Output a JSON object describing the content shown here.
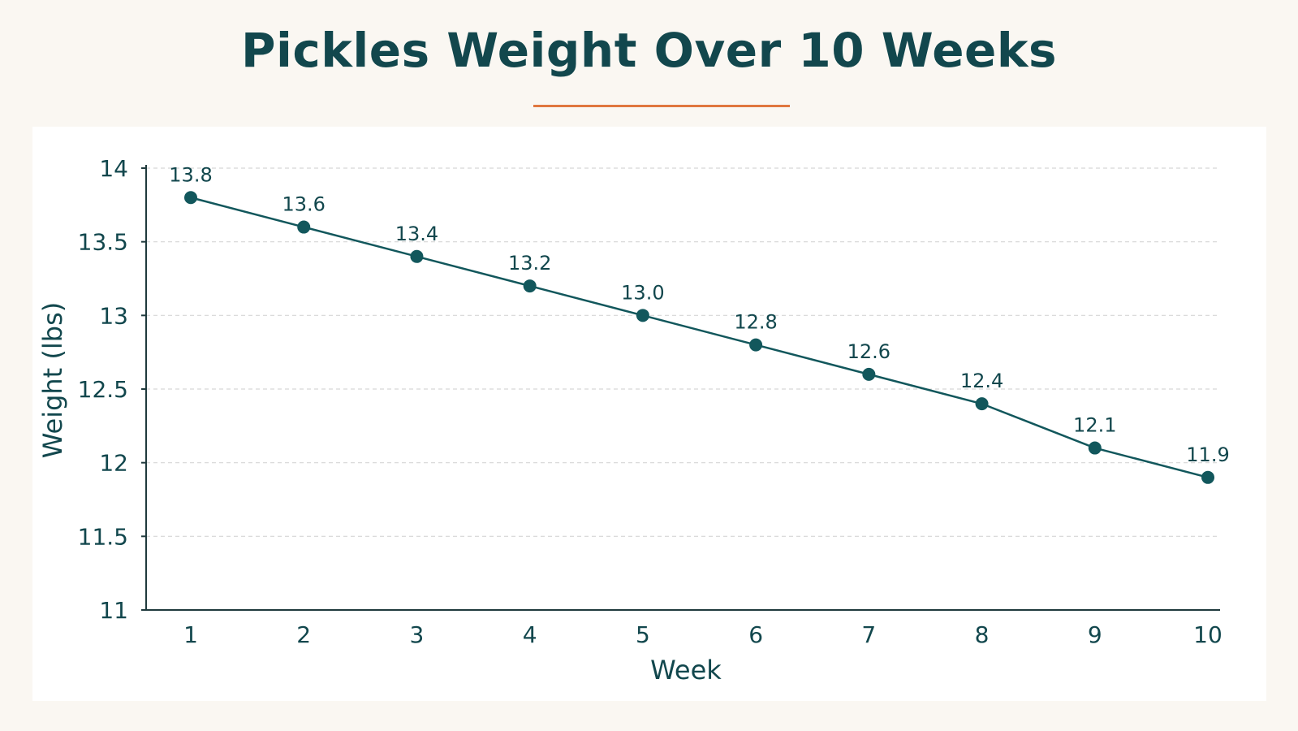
{
  "chart_data": {
    "type": "line",
    "title": "Pickles Weight Over 10 Weeks",
    "xlabel": "Week",
    "ylabel": "Weight (lbs)",
    "x": [
      1,
      2,
      3,
      4,
      5,
      6,
      7,
      8,
      9,
      10
    ],
    "x_tick_labels": [
      "1",
      "2",
      "3",
      "4",
      "5",
      "6",
      "7",
      "8",
      "9",
      "10"
    ],
    "series": [
      {
        "values": [
          13.8,
          13.6,
          13.4,
          13.2,
          13.0,
          12.8,
          12.6,
          12.4,
          12.1,
          11.9
        ],
        "data_labels": [
          "13.8",
          "13.6",
          "13.4",
          "13.2",
          "13.0",
          "12.8",
          "12.6",
          "12.4",
          "12.1",
          "11.9"
        ]
      }
    ],
    "ylim": [
      11,
      14
    ],
    "y_ticks": [
      11,
      11.5,
      12,
      12.5,
      13,
      13.5,
      14
    ],
    "y_tick_labels": [
      "11",
      "11.5",
      "12",
      "12.5",
      "13",
      "13.5",
      "14"
    ],
    "grid": "horizontal dashed",
    "legend": "none",
    "colors": {
      "line": "#12575c",
      "text": "#12474d",
      "accent": "#e0773f",
      "grid": "#d6d6d6",
      "axis": "#1f3a3d"
    }
  }
}
